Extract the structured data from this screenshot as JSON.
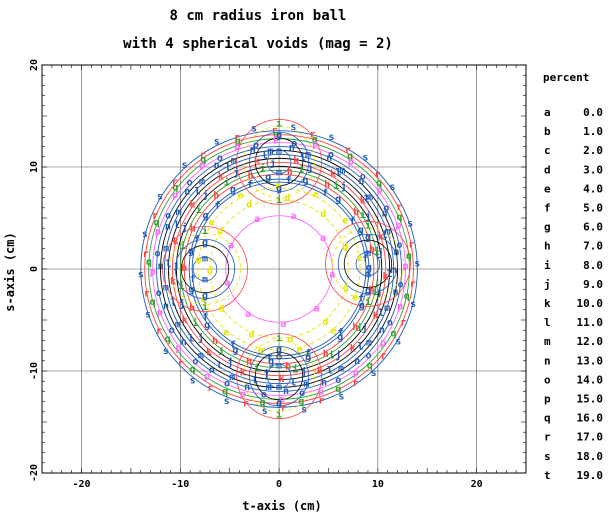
{
  "chart_data": {
    "type": "contour",
    "title": "8 cm radius iron ball",
    "subtitle": "with 4 spherical voids (mag = 2)",
    "xlabel": "t-axis (cm)",
    "ylabel": "s-axis (cm)",
    "xlim": [
      -24,
      25
    ],
    "ylim": [
      -20,
      20
    ],
    "xticks": [
      "-20",
      "-10",
      "0",
      "10",
      "20"
    ],
    "yticks": [
      "-20",
      "-10",
      "0",
      "10",
      "20"
    ],
    "grid": true,
    "legend_title": "percent",
    "legend_position": "right",
    "levels": [
      {
        "label": "a",
        "percent": "0.0",
        "color": "#ff66ff"
      },
      {
        "label": "b",
        "percent": "1.0",
        "color": "#000000"
      },
      {
        "label": "c",
        "percent": "2.0",
        "color": "#1e5ab4"
      },
      {
        "label": "d",
        "percent": "3.0",
        "color": "#e6e600"
      },
      {
        "label": "e",
        "percent": "4.0",
        "color": "#e6e600"
      },
      {
        "label": "f",
        "percent": "5.0",
        "color": "#1e5ab4"
      },
      {
        "label": "g",
        "percent": "6.0",
        "color": "#1e5ab4"
      },
      {
        "label": "h",
        "percent": "7.0",
        "color": "#ff4040"
      },
      {
        "label": "i",
        "percent": "8.0",
        "color": "#2ea02e"
      },
      {
        "label": "j",
        "percent": "9.0",
        "color": "#000000"
      },
      {
        "label": "k",
        "percent": "10.0",
        "color": "#ff4040"
      },
      {
        "label": "l",
        "percent": "11.0",
        "color": "#000000"
      },
      {
        "label": "m",
        "percent": "12.0",
        "color": "#1e5ab4"
      },
      {
        "label": "n",
        "percent": "13.0",
        "color": "#000000"
      },
      {
        "label": "o",
        "percent": "14.0",
        "color": "#1e5ab4"
      },
      {
        "label": "p",
        "percent": "15.0",
        "color": "#ff66ff"
      },
      {
        "label": "q",
        "percent": "16.0",
        "color": "#2ea02e"
      },
      {
        "label": "r",
        "percent": "17.0",
        "color": "#ff4040"
      },
      {
        "label": "s",
        "percent": "18.0",
        "color": "#1e5ab4"
      },
      {
        "label": "t",
        "percent": "19.0",
        "color": "#000000"
      }
    ],
    "ball": {
      "center": [
        0,
        0
      ],
      "radius": 14.2
    },
    "voids": [
      {
        "center": [
          0,
          10.5
        ],
        "radius": 2.5
      },
      {
        "center": [
          -7.5,
          0
        ],
        "radius": 2.5
      },
      {
        "center": [
          9,
          0.5
        ],
        "radius": 2.5
      },
      {
        "center": [
          0,
          -10.5
        ],
        "radius": 2.5
      }
    ],
    "contours": [
      {
        "label": "s",
        "radius": 14.0,
        "color": "#1e5ab4"
      },
      {
        "label": "r",
        "radius": 13.6,
        "color": "#ff4040"
      },
      {
        "label": "q",
        "radius": 13.2,
        "color": "#2ea02e"
      },
      {
        "label": "p",
        "radius": 12.8,
        "color": "#ff66ff"
      },
      {
        "label": "o",
        "radius": 12.4,
        "color": "#1e5ab4"
      },
      {
        "label": "n",
        "radius": 12.0,
        "color": "#000000"
      },
      {
        "label": "m",
        "radius": 11.6,
        "color": "#1e5ab4"
      },
      {
        "label": "l",
        "radius": 11.2,
        "color": "#000000"
      },
      {
        "label": "k",
        "radius": 10.8,
        "color": "#ff4040"
      },
      {
        "label": "j",
        "radius": 10.4,
        "color": "#000000"
      },
      {
        "label": "i",
        "radius": 10.0,
        "color": "#2ea02e"
      },
      {
        "label": "h",
        "radius": 9.6,
        "color": "#ff4040"
      },
      {
        "label": "g",
        "radius": 9.1,
        "color": "#1e5ab4"
      },
      {
        "label": "f",
        "radius": 8.8,
        "color": "#1e5ab4"
      },
      {
        "label": "e",
        "radius": 8.2,
        "color": "#e6e600"
      },
      {
        "label": "d",
        "radius": 7.0,
        "color": "#e6e600"
      },
      {
        "label": "a",
        "radius": 5.4,
        "color": "#ff66ff"
      }
    ]
  }
}
